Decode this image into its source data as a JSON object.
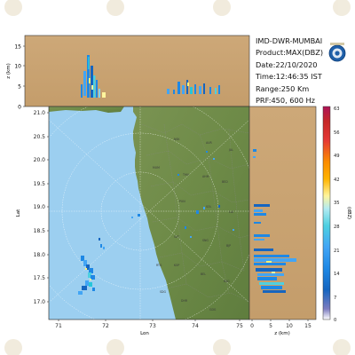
{
  "info": {
    "station": "IMD-DWR-MUMBAI",
    "product": "Product:MAX(DBZ)",
    "date": "Date:22/10/2020",
    "time": "Time:12:46:35 IST",
    "range": "Range:250 Km",
    "prf": "PRF:450, 600 Hz"
  },
  "map": {
    "lon_ticks": [
      "71",
      "72",
      "73",
      "74",
      "75"
    ],
    "lat_ticks": [
      "21.0",
      "20.5",
      "20.0",
      "19.5",
      "19.0",
      "18.5",
      "18.0",
      "17.5",
      "17.0"
    ],
    "xlabel": "Lon",
    "ylabel": "Lat"
  },
  "top_panel": {
    "ylabel": "z (km)",
    "ticks": [
      "15",
      "10",
      "5",
      "0"
    ]
  },
  "side_panel": {
    "xlabel": "z (km)",
    "ticks": [
      "0",
      "5",
      "10",
      "15"
    ]
  },
  "colorbar": {
    "label": "(dBZ)",
    "ticks": [
      "63",
      "56",
      "49",
      "42",
      "35",
      "28",
      "21",
      "14",
      "7",
      "0"
    ],
    "colors": [
      "#ffffff",
      "#6a6ab8",
      "#1565c0",
      "#1e88e5",
      "#42a5f5",
      "#26c6da",
      "#80deea",
      "#fff176",
      "#ffb300",
      "#fb8c00",
      "#e53935",
      "#c62828",
      "#ad1457"
    ]
  },
  "colors": {
    "land": "#6e8b4a",
    "sea": "#9ccff0",
    "top_bg": "#c9a472",
    "side_bg": "#c9a472"
  }
}
